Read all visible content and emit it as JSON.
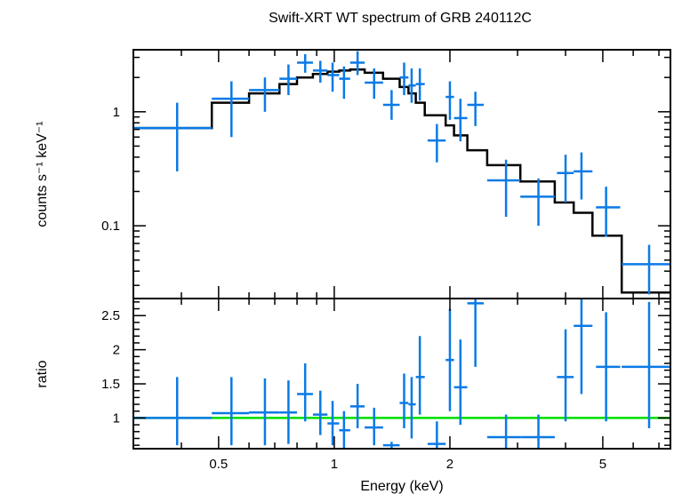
{
  "chart_data": {
    "type": "scatter",
    "title": "Swift-XRT WT spectrum of GRB 240112C",
    "xlabel": "Energy (keV)",
    "xscale": "log",
    "xlim": [
      0.3,
      7.5
    ],
    "x_ticks": [
      0.5,
      1,
      2,
      5
    ],
    "x_tick_labels": [
      "0.5",
      "1",
      "2",
      "5"
    ],
    "colors": {
      "data": "#0a7ae6",
      "model": "#000000",
      "unity": "#00e000",
      "axes": "#000000"
    },
    "panels": [
      {
        "name": "spectrum",
        "ylabel": "counts s⁻¹ keV⁻¹",
        "yscale": "log",
        "ylim": [
          0.023,
          3.5
        ],
        "y_ticks": [
          0.1,
          1
        ],
        "y_tick_labels": [
          "0.1",
          "1"
        ],
        "series": [
          {
            "type": "errorbar",
            "points": [
              {
                "x": 0.39,
                "xlo": 0.3,
                "xhi": 0.48,
                "y": 0.72,
                "ylo": 0.3,
                "yhi": 1.2
              },
              {
                "x": 0.54,
                "xlo": 0.48,
                "xhi": 0.6,
                "y": 1.3,
                "ylo": 0.6,
                "yhi": 1.85
              },
              {
                "x": 0.66,
                "xlo": 0.6,
                "xhi": 0.72,
                "y": 1.55,
                "ylo": 1.0,
                "yhi": 2.0
              },
              {
                "x": 0.76,
                "xlo": 0.72,
                "xhi": 0.8,
                "y": 1.95,
                "ylo": 1.4,
                "yhi": 2.6
              },
              {
                "x": 0.84,
                "xlo": 0.8,
                "xhi": 0.88,
                "y": 2.7,
                "ylo": 2.2,
                "yhi": 3.2
              },
              {
                "x": 0.92,
                "xlo": 0.88,
                "xhi": 0.96,
                "y": 2.3,
                "ylo": 1.8,
                "yhi": 2.8
              },
              {
                "x": 0.99,
                "xlo": 0.96,
                "xhi": 1.03,
                "y": 2.1,
                "ylo": 1.5,
                "yhi": 2.7
              },
              {
                "x": 1.06,
                "xlo": 1.03,
                "xhi": 1.1,
                "y": 1.95,
                "ylo": 1.3,
                "yhi": 2.5
              },
              {
                "x": 1.15,
                "xlo": 1.1,
                "xhi": 1.2,
                "y": 2.7,
                "ylo": 2.1,
                "yhi": 3.4
              },
              {
                "x": 1.27,
                "xlo": 1.2,
                "xhi": 1.34,
                "y": 1.8,
                "ylo": 1.3,
                "yhi": 2.4
              },
              {
                "x": 1.41,
                "xlo": 1.34,
                "xhi": 1.48,
                "y": 1.15,
                "ylo": 0.85,
                "yhi": 1.55
              },
              {
                "x": 1.52,
                "xlo": 1.48,
                "xhi": 1.56,
                "y": 2.0,
                "ylo": 1.4,
                "yhi": 2.7
              },
              {
                "x": 1.59,
                "xlo": 1.56,
                "xhi": 1.63,
                "y": 1.7,
                "ylo": 1.2,
                "yhi": 2.4
              },
              {
                "x": 1.67,
                "xlo": 1.63,
                "xhi": 1.72,
                "y": 1.75,
                "ylo": 1.25,
                "yhi": 2.4
              },
              {
                "x": 1.85,
                "xlo": 1.75,
                "xhi": 1.95,
                "y": 0.56,
                "ylo": 0.36,
                "yhi": 0.78
              },
              {
                "x": 2.0,
                "xlo": 1.95,
                "xhi": 2.05,
                "y": 1.35,
                "ylo": 0.85,
                "yhi": 1.85
              },
              {
                "x": 2.13,
                "xlo": 2.05,
                "xhi": 2.22,
                "y": 0.88,
                "ylo": 0.55,
                "yhi": 1.3
              },
              {
                "x": 2.33,
                "xlo": 2.22,
                "xhi": 2.45,
                "y": 1.15,
                "ylo": 0.75,
                "yhi": 1.5
              },
              {
                "x": 2.8,
                "xlo": 2.5,
                "xhi": 3.05,
                "y": 0.25,
                "ylo": 0.12,
                "yhi": 0.38
              },
              {
                "x": 3.4,
                "xlo": 3.05,
                "xhi": 3.75,
                "y": 0.18,
                "ylo": 0.1,
                "yhi": 0.26
              },
              {
                "x": 4.0,
                "xlo": 3.8,
                "xhi": 4.2,
                "y": 0.29,
                "ylo": 0.16,
                "yhi": 0.42
              },
              {
                "x": 4.4,
                "xlo": 4.2,
                "xhi": 4.7,
                "y": 0.3,
                "ylo": 0.17,
                "yhi": 0.44
              },
              {
                "x": 5.1,
                "xlo": 4.8,
                "xhi": 5.55,
                "y": 0.145,
                "ylo": 0.08,
                "yhi": 0.22
              },
              {
                "x": 6.6,
                "xlo": 5.6,
                "xhi": 7.5,
                "y": 0.046,
                "ylo": 0.025,
                "yhi": 0.068
              }
            ]
          },
          {
            "type": "step",
            "edges": [
              0.3,
              0.48,
              0.6,
              0.72,
              0.8,
              0.88,
              0.96,
              1.03,
              1.1,
              1.2,
              1.34,
              1.48,
              1.56,
              1.63,
              1.72,
              1.95,
              2.05,
              2.22,
              2.5,
              3.05,
              3.75,
              4.2,
              4.7,
              5.6,
              7.5
            ],
            "values": [
              0.72,
              1.2,
              1.45,
              1.75,
              2.0,
              2.15,
              2.25,
              2.3,
              2.35,
              2.2,
              1.95,
              1.65,
              1.45,
              1.2,
              0.93,
              0.76,
              0.62,
              0.46,
              0.34,
              0.245,
              0.16,
              0.13,
              0.082,
              0.026
            ]
          }
        ]
      },
      {
        "name": "ratio",
        "ylabel": "ratio",
        "yscale": "linear",
        "ylim": [
          0.55,
          2.75
        ],
        "y_ticks": [
          1,
          1.5,
          2,
          2.5
        ],
        "y_tick_labels": [
          "1",
          "1.5",
          "2",
          "2.5"
        ],
        "unity": 1,
        "series": [
          {
            "type": "errorbar",
            "points": [
              {
                "x": 0.39,
                "xlo": 0.3,
                "xhi": 0.48,
                "y": 1.0,
                "ylo": 0.6,
                "yhi": 1.6
              },
              {
                "x": 0.54,
                "xlo": 0.48,
                "xhi": 0.6,
                "y": 1.07,
                "ylo": 0.6,
                "yhi": 1.6
              },
              {
                "x": 0.66,
                "xlo": 0.6,
                "xhi": 0.72,
                "y": 1.08,
                "ylo": 0.6,
                "yhi": 1.58
              },
              {
                "x": 0.76,
                "xlo": 0.72,
                "xhi": 0.8,
                "y": 1.08,
                "ylo": 0.62,
                "yhi": 1.55
              },
              {
                "x": 0.84,
                "xlo": 0.8,
                "xhi": 0.88,
                "y": 1.35,
                "ylo": 0.95,
                "yhi": 1.8
              },
              {
                "x": 0.92,
                "xlo": 0.88,
                "xhi": 0.96,
                "y": 1.05,
                "ylo": 0.75,
                "yhi": 1.4
              },
              {
                "x": 0.99,
                "xlo": 0.96,
                "xhi": 1.03,
                "y": 0.92,
                "ylo": 0.6,
                "yhi": 1.25
              },
              {
                "x": 1.06,
                "xlo": 1.03,
                "xhi": 1.1,
                "y": 0.82,
                "ylo": 0.55,
                "yhi": 1.1
              },
              {
                "x": 1.15,
                "xlo": 1.1,
                "xhi": 1.2,
                "y": 1.17,
                "ylo": 0.85,
                "yhi": 1.5
              },
              {
                "x": 1.27,
                "xlo": 1.2,
                "xhi": 1.34,
                "y": 0.86,
                "ylo": 0.6,
                "yhi": 1.15
              },
              {
                "x": 1.41,
                "xlo": 1.34,
                "xhi": 1.48,
                "y": 0.6,
                "ylo": 0.55,
                "yhi": 0.65
              },
              {
                "x": 1.52,
                "xlo": 1.48,
                "xhi": 1.56,
                "y": 1.22,
                "ylo": 0.85,
                "yhi": 1.65
              },
              {
                "x": 1.59,
                "xlo": 1.56,
                "xhi": 1.63,
                "y": 1.2,
                "ylo": 0.7,
                "yhi": 1.6
              },
              {
                "x": 1.67,
                "xlo": 1.63,
                "xhi": 1.72,
                "y": 1.6,
                "ylo": 1.05,
                "yhi": 2.2
              },
              {
                "x": 1.85,
                "xlo": 1.75,
                "xhi": 1.95,
                "y": 0.62,
                "ylo": 0.55,
                "yhi": 0.95
              },
              {
                "x": 2.0,
                "xlo": 1.95,
                "xhi": 2.05,
                "y": 1.85,
                "ylo": 1.1,
                "yhi": 2.6
              },
              {
                "x": 2.13,
                "xlo": 2.05,
                "xhi": 2.22,
                "y": 1.45,
                "ylo": 0.9,
                "yhi": 2.15
              },
              {
                "x": 2.33,
                "xlo": 2.22,
                "xhi": 2.45,
                "y": 2.68,
                "ylo": 1.75,
                "yhi": 2.75
              },
              {
                "x": 2.8,
                "xlo": 2.5,
                "xhi": 3.05,
                "y": 0.72,
                "ylo": 0.55,
                "yhi": 1.05
              },
              {
                "x": 3.4,
                "xlo": 3.05,
                "xhi": 3.75,
                "y": 0.72,
                "ylo": 0.55,
                "yhi": 1.05
              },
              {
                "x": 4.0,
                "xlo": 3.8,
                "xhi": 4.2,
                "y": 1.6,
                "ylo": 0.95,
                "yhi": 2.3
              },
              {
                "x": 4.4,
                "xlo": 4.2,
                "xhi": 4.7,
                "y": 2.35,
                "ylo": 1.35,
                "yhi": 2.75
              },
              {
                "x": 5.1,
                "xlo": 4.8,
                "xhi": 5.55,
                "y": 1.75,
                "ylo": 0.95,
                "yhi": 2.55
              },
              {
                "x": 6.6,
                "xlo": 5.6,
                "xhi": 7.5,
                "y": 1.75,
                "ylo": 0.85,
                "yhi": 2.7
              }
            ]
          }
        ]
      }
    ]
  }
}
